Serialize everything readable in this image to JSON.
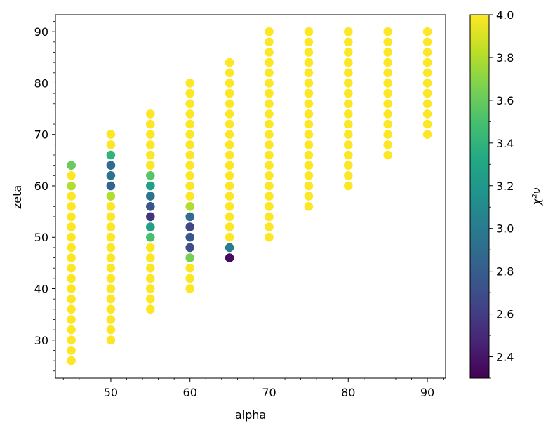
{
  "chart_data": {
    "type": "scatter",
    "title": "",
    "xlabel": "alpha",
    "ylabel": "zeta",
    "xlim": [
      43,
      92.3
    ],
    "ylim": [
      22.6,
      93.3
    ],
    "xticks": [
      50,
      60,
      70,
      80,
      90
    ],
    "yticks": [
      30,
      40,
      50,
      60,
      70,
      80,
      90
    ],
    "grid": false,
    "colormap": "viridis",
    "colorbar": {
      "label": "χ²ν",
      "min": 2.3,
      "max": 4.0,
      "ticks": [
        "2.4",
        "2.6",
        "2.8",
        "3.0",
        "3.2",
        "3.4",
        "3.6",
        "3.8",
        "4.0"
      ]
    },
    "default_value": 4.0,
    "columns": [
      {
        "alpha": 45,
        "zeta_min": 26,
        "zeta_max": 64,
        "step": 2
      },
      {
        "alpha": 50,
        "zeta_min": 30,
        "zeta_max": 70,
        "step": 2
      },
      {
        "alpha": 55,
        "zeta_min": 36,
        "zeta_max": 74,
        "step": 2
      },
      {
        "alpha": 60,
        "zeta_min": 40,
        "zeta_max": 80,
        "step": 2
      },
      {
        "alpha": 65,
        "zeta_min": 46,
        "zeta_max": 84,
        "step": 2
      },
      {
        "alpha": 70,
        "zeta_min": 50,
        "zeta_max": 90,
        "step": 2
      },
      {
        "alpha": 75,
        "zeta_min": 56,
        "zeta_max": 90,
        "step": 2
      },
      {
        "alpha": 80,
        "zeta_min": 60,
        "zeta_max": 90,
        "step": 2
      },
      {
        "alpha": 85,
        "zeta_min": 66,
        "zeta_max": 90,
        "step": 2
      },
      {
        "alpha": 90,
        "zeta_min": 70,
        "zeta_max": 90,
        "step": 2
      }
    ],
    "special_points": [
      {
        "alpha": 45,
        "zeta": 64,
        "value": 3.6
      },
      {
        "alpha": 45,
        "zeta": 60,
        "value": 3.8
      },
      {
        "alpha": 50,
        "zeta": 66,
        "value": 3.4
      },
      {
        "alpha": 50,
        "zeta": 64,
        "value": 2.9
      },
      {
        "alpha": 50,
        "zeta": 62,
        "value": 2.95
      },
      {
        "alpha": 50,
        "zeta": 60,
        "value": 2.85
      },
      {
        "alpha": 50,
        "zeta": 58,
        "value": 3.8
      },
      {
        "alpha": 55,
        "zeta": 62,
        "value": 3.55
      },
      {
        "alpha": 55,
        "zeta": 60,
        "value": 3.25
      },
      {
        "alpha": 55,
        "zeta": 58,
        "value": 2.95
      },
      {
        "alpha": 55,
        "zeta": 56,
        "value": 2.75
      },
      {
        "alpha": 55,
        "zeta": 54,
        "value": 2.55
      },
      {
        "alpha": 55,
        "zeta": 52,
        "value": 3.25
      },
      {
        "alpha": 55,
        "zeta": 50,
        "value": 3.5
      },
      {
        "alpha": 60,
        "zeta": 56,
        "value": 3.8
      },
      {
        "alpha": 60,
        "zeta": 54,
        "value": 2.9
      },
      {
        "alpha": 60,
        "zeta": 52,
        "value": 2.65
      },
      {
        "alpha": 60,
        "zeta": 50,
        "value": 2.75
      },
      {
        "alpha": 60,
        "zeta": 48,
        "value": 2.7
      },
      {
        "alpha": 60,
        "zeta": 46,
        "value": 3.65
      },
      {
        "alpha": 65,
        "zeta": 48,
        "value": 3.0
      },
      {
        "alpha": 65,
        "zeta": 46,
        "value": 2.35
      }
    ]
  }
}
